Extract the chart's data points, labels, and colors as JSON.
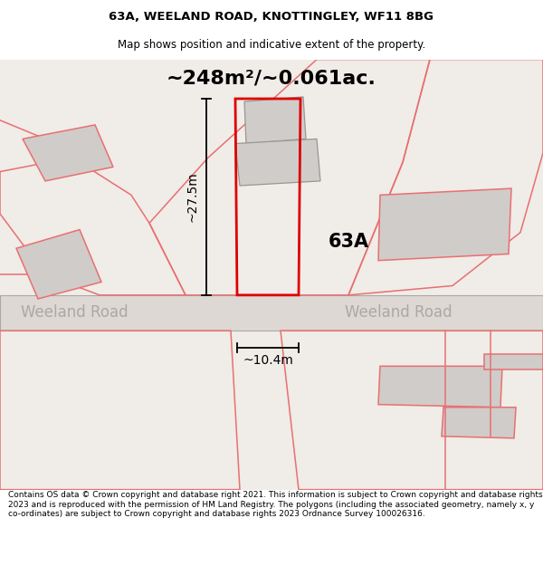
{
  "title": "63A, WEELAND ROAD, KNOTTINGLEY, WF11 8BG",
  "subtitle": "Map shows position and indicative extent of the property.",
  "area_text": "~248m²/~0.061ac.",
  "label_63a": "63A",
  "dim_height": "~27.5m",
  "dim_width": "~10.4m",
  "road_label": "Weeland Road",
  "footer": "Contains OS data © Crown copyright and database right 2021. This information is subject to Crown copyright and database rights 2023 and is reproduced with the permission of HM Land Registry. The polygons (including the associated geometry, namely x, y co-ordinates) are subject to Crown copyright and database rights 2023 Ordnance Survey 100026316.",
  "bg_color": "#f7f4f2",
  "map_bg": "#f0ece8",
  "road_fill": "#e2dddb",
  "plot_outline_color": "#dd0000",
  "other_outline_color": "#e87070",
  "building_fill": "#d0ccca",
  "title_fontsize": 9.5,
  "subtitle_fontsize": 8.5,
  "area_fontsize": 16,
  "label_fontsize": 15,
  "dim_fontsize": 10,
  "road_fontsize": 12,
  "footer_fontsize": 6.5
}
